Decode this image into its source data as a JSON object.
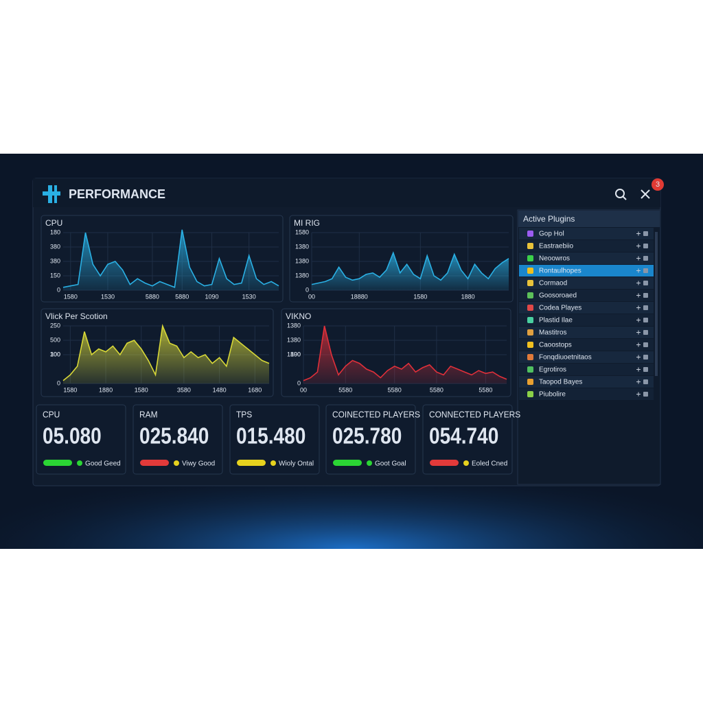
{
  "header": {
    "title": "PERFORMANCE",
    "badge": "3"
  },
  "chart_data": [
    {
      "type": "area",
      "title": "CPU",
      "color": "#2ab0e4",
      "x": [
        0,
        1,
        2,
        3,
        4,
        5,
        6,
        7,
        8,
        9,
        10,
        11,
        12,
        13,
        14,
        15,
        16,
        17,
        18,
        19,
        20,
        21,
        22,
        23,
        24,
        25,
        26,
        27,
        28,
        29
      ],
      "values": [
        10,
        15,
        20,
        200,
        90,
        50,
        90,
        100,
        70,
        20,
        40,
        25,
        15,
        30,
        20,
        10,
        210,
        80,
        30,
        15,
        20,
        110,
        40,
        20,
        25,
        120,
        40,
        20,
        30,
        15
      ],
      "xlim": [
        0,
        29
      ],
      "ylim": [
        0,
        200
      ],
      "yticks": [
        0,
        {
          "value": 50,
          "label": "150"
        },
        {
          "value": 100,
          "label": "380"
        },
        {
          "value": 150,
          "label": "380"
        },
        {
          "value": 200,
          "label": "180"
        }
      ],
      "xticks": [
        {
          "value": 1,
          "label": "1580"
        },
        {
          "value": 6,
          "label": "1530"
        },
        {
          "value": 12,
          "label": "5880"
        },
        {
          "value": 16,
          "label": "5880"
        },
        {
          "value": 20,
          "label": "1090"
        },
        {
          "value": 25,
          "label": "1530"
        }
      ],
      "grid": true
    },
    {
      "type": "area",
      "title": "MI RIG",
      "color": "#2ab0e4",
      "x": [
        0,
        1,
        2,
        3,
        4,
        5,
        6,
        7,
        8,
        9,
        10,
        11,
        12,
        13,
        14,
        15,
        16,
        17,
        18,
        19,
        20,
        21,
        22,
        23,
        24,
        25,
        26,
        27,
        28,
        29
      ],
      "values": [
        20,
        25,
        30,
        40,
        80,
        45,
        35,
        40,
        55,
        60,
        45,
        70,
        130,
        60,
        90,
        55,
        40,
        120,
        50,
        35,
        60,
        125,
        70,
        40,
        90,
        60,
        40,
        75,
        95,
        110
      ],
      "xlim": [
        0,
        29
      ],
      "ylim": [
        0,
        200
      ],
      "yticks": [
        0,
        {
          "value": 50,
          "label": "1380"
        },
        {
          "value": 100,
          "label": "1380"
        },
        {
          "value": 150,
          "label": "1380"
        },
        {
          "value": 200,
          "label": "1580"
        }
      ],
      "xticks": [
        {
          "value": 0,
          "label": "00"
        },
        {
          "value": 7,
          "label": "18880"
        },
        {
          "value": 16,
          "label": "1580"
        },
        {
          "value": 23,
          "label": "1880"
        }
      ],
      "grid": true
    },
    {
      "type": "area",
      "title": "Vlick Per Scotion",
      "color": "#d8d838",
      "x": [
        0,
        1,
        2,
        3,
        4,
        5,
        6,
        7,
        8,
        9,
        10,
        11,
        12,
        13,
        14,
        15,
        16,
        17,
        18,
        19,
        20,
        21,
        22,
        23,
        24,
        25,
        26,
        27,
        28,
        29
      ],
      "values": [
        10,
        30,
        60,
        180,
        100,
        120,
        110,
        130,
        100,
        140,
        150,
        120,
        80,
        30,
        200,
        140,
        130,
        90,
        110,
        90,
        100,
        70,
        90,
        60,
        160,
        140,
        120,
        100,
        80,
        70
      ],
      "xlim": [
        0,
        29
      ],
      "ylim": [
        0,
        200
      ],
      "yticks": [
        0,
        100,
        {
          "value": 100,
          "label": "300"
        },
        {
          "value": 150,
          "label": "500"
        },
        {
          "value": 200,
          "label": "250"
        }
      ],
      "xticks": [
        {
          "value": 1,
          "label": "1580"
        },
        {
          "value": 6,
          "label": "1880"
        },
        {
          "value": 11,
          "label": "1580"
        },
        {
          "value": 17,
          "label": "3580"
        },
        {
          "value": 22,
          "label": "1480"
        },
        {
          "value": 27,
          "label": "1680"
        }
      ],
      "grid": true
    },
    {
      "type": "area",
      "title": "VIKNO",
      "color": "#e0303a",
      "x": [
        0,
        1,
        2,
        3,
        4,
        5,
        6,
        7,
        8,
        9,
        10,
        11,
        12,
        13,
        14,
        15,
        16,
        17,
        18,
        19,
        20,
        21,
        22,
        23,
        24,
        25,
        26,
        27,
        28,
        29
      ],
      "values": [
        10,
        20,
        40,
        200,
        100,
        30,
        60,
        80,
        70,
        50,
        40,
        20,
        45,
        60,
        50,
        70,
        40,
        55,
        65,
        40,
        30,
        60,
        50,
        40,
        30,
        45,
        35,
        40,
        25,
        15
      ],
      "xlim": [
        0,
        29
      ],
      "ylim": [
        0,
        200
      ],
      "yticks": [
        0,
        100,
        {
          "value": 100,
          "label": "1890"
        },
        {
          "value": 150,
          "label": "1380"
        },
        {
          "value": 200,
          "label": "1380"
        }
      ],
      "xticks": [
        {
          "value": 0,
          "label": "00"
        },
        {
          "value": 6,
          "label": "5580"
        },
        {
          "value": 13,
          "label": "5580"
        },
        {
          "value": 19,
          "label": "5580"
        },
        {
          "value": 26,
          "label": "5580"
        }
      ],
      "grid": true
    }
  ],
  "stats": [
    {
      "label": "CPU",
      "value": "05.080",
      "status": "Good Geed",
      "bar": "#2bd534",
      "dot": "#2bd534",
      "status_color": "#9aa4b4"
    },
    {
      "label": "RAM",
      "value": "025.840",
      "status": "Viwy Good",
      "bar": "#e23a3a",
      "dot": "#e6d21e",
      "status_color": "#9aa4b4"
    },
    {
      "label": "TPS",
      "value": "015.480",
      "status": "Wioly Ontal",
      "bar": "#e6d21e",
      "dot": "#e6d21e",
      "status_color": "#9aa4b4"
    },
    {
      "label": "COINECTED PLAYERS",
      "value": "025.780",
      "status": "Goot Goal",
      "bar": "#2bd534",
      "dot": "#2bd534",
      "status_color": "#9aa4b4"
    },
    {
      "label": "CONNECTED PLAYERS",
      "value": "054.740",
      "status": "Eoled Cned",
      "bar": "#e23a3a",
      "dot": "#e6d21e",
      "status_color": "#e23a3a"
    }
  ],
  "plugins": {
    "title": "Active Plugins",
    "selected": 3,
    "items": [
      {
        "name": "Gop Hol",
        "icon": "#9b5cf0"
      },
      {
        "name": "Eastraebiio",
        "icon": "#e8c23a"
      },
      {
        "name": "Neoowros",
        "icon": "#3bd04a"
      },
      {
        "name": "Rontaulhopes",
        "icon": "#f0c020"
      },
      {
        "name": "Cormaod",
        "icon": "#e8c23a"
      },
      {
        "name": "Goosoroaed",
        "icon": "#5cc05a"
      },
      {
        "name": "Codea Playes",
        "icon": "#e04848"
      },
      {
        "name": "Plastid Ilae",
        "icon": "#4ad0a0"
      },
      {
        "name": "Mastitros",
        "icon": "#e0a040"
      },
      {
        "name": "Caoostops",
        "icon": "#f0c020"
      },
      {
        "name": "Fonqdiuoetnitaos",
        "icon": "#e07a3a"
      },
      {
        "name": "Egrotiros",
        "icon": "#50c060"
      },
      {
        "name": "Taopod Bayes",
        "icon": "#e8a030"
      },
      {
        "name": "Piubolire",
        "icon": "#8bd048"
      }
    ]
  }
}
